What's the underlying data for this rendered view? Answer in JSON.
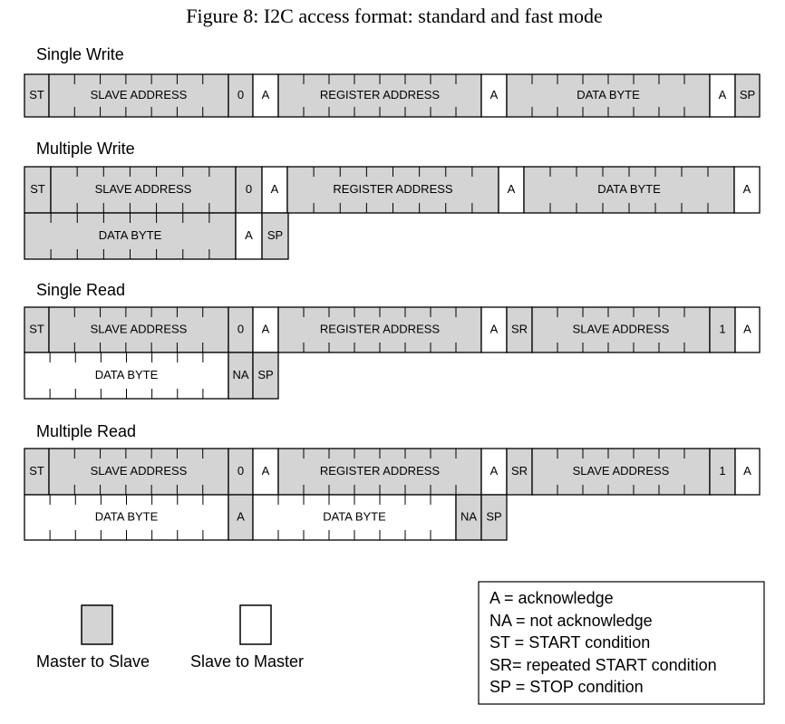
{
  "title": "Figure 8: I2C access format: standard and fast mode",
  "sections": [
    {
      "title": "Single Write",
      "rows": [
        [
          "ST",
          "SLAVE ADDRESS",
          "0",
          "A",
          "REGISTER ADDRESS",
          "A",
          "DATA BYTE",
          "A",
          "SP"
        ]
      ]
    },
    {
      "title": "Multiple Write",
      "rows": [
        [
          "ST",
          "SLAVE ADDRESS",
          "0",
          "A",
          "REGISTER ADDRESS",
          "A",
          "DATA BYTE",
          "A"
        ],
        [
          "DATA BYTE",
          "A",
          "SP"
        ]
      ]
    },
    {
      "title": "Single Read",
      "rows": [
        [
          "ST",
          "SLAVE ADDRESS",
          "0",
          "A",
          "REGISTER ADDRESS",
          "A",
          "SR",
          "SLAVE ADDRESS",
          "1",
          "A"
        ],
        [
          "DATA BYTE",
          "NA",
          "SP"
        ]
      ]
    },
    {
      "title": "Multiple Read",
      "rows": [
        [
          "ST",
          "SLAVE ADDRESS",
          "0",
          "A",
          "REGISTER ADDRESS",
          "A",
          "SR",
          "SLAVE ADDRESS",
          "1",
          "A"
        ],
        [
          "DATA BYTE",
          "A",
          "DATA BYTE",
          "NA",
          "SP"
        ]
      ]
    }
  ],
  "legend": {
    "master_to_slave": "Master to Slave",
    "slave_to_master": "Slave to Master"
  },
  "definitions": [
    "A = acknowledge",
    "NA = not acknowledge",
    "ST = START condition",
    "SR= repeated START condition",
    "SP = STOP condition"
  ]
}
